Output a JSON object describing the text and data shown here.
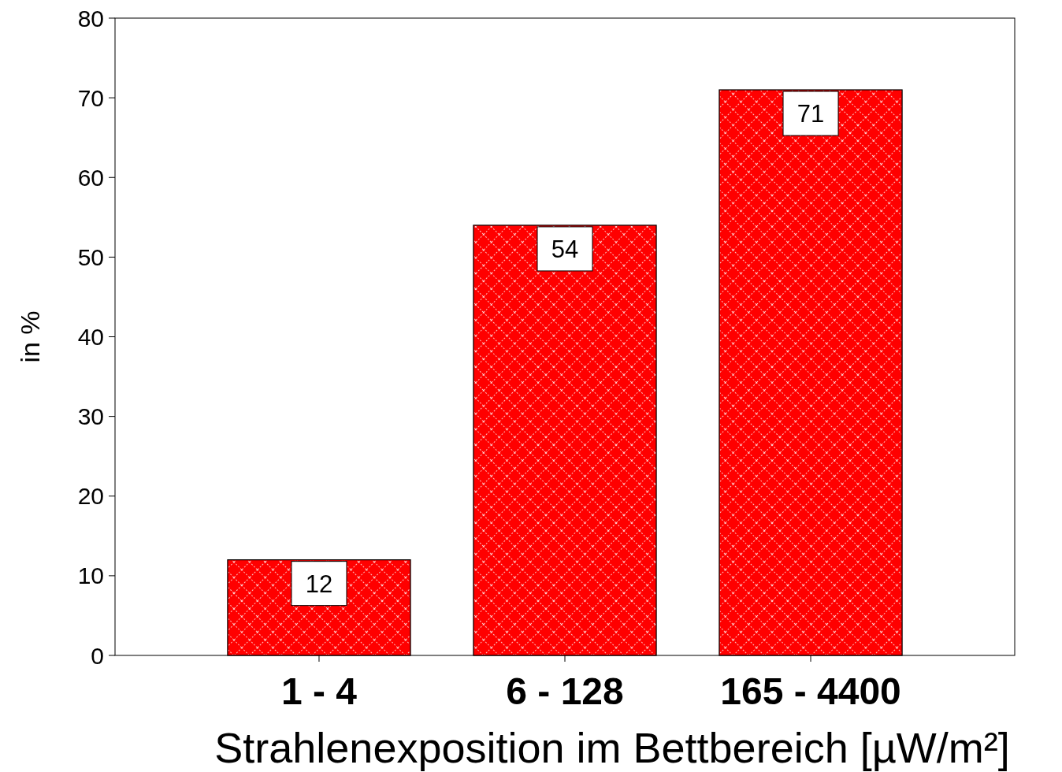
{
  "chart_data": {
    "type": "bar",
    "categories": [
      "1 - 4",
      "6 - 128",
      "165 - 4400"
    ],
    "values": [
      12,
      54,
      71
    ],
    "color": "#ff0000",
    "ylim": [
      0,
      80
    ],
    "yticks": [
      0,
      10,
      20,
      30,
      40,
      50,
      60,
      70,
      80
    ],
    "xlabel": "Strahlenexposition im Bettbereich [µW/m²]",
    "ylabel": "in %",
    "data_labels": true,
    "grid": false
  }
}
